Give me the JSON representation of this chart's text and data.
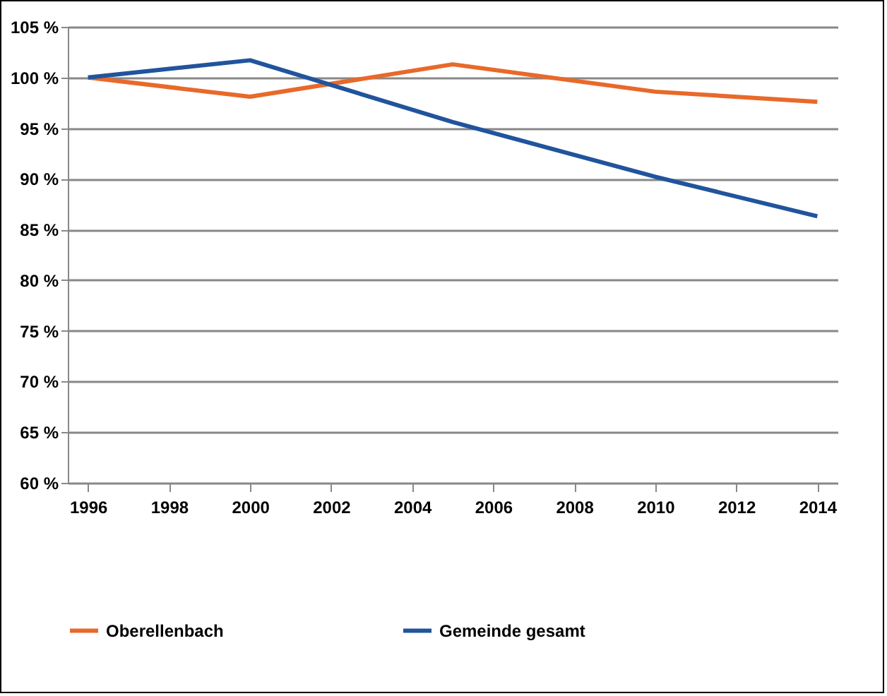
{
  "chart_data": {
    "type": "line",
    "x": [
      1996,
      2000,
      2005,
      2010,
      2014
    ],
    "series": [
      {
        "name": "Oberellenbach",
        "color": "#e8692a",
        "values": [
          100,
          98.1,
          101.3,
          98.6,
          97.6
        ]
      },
      {
        "name": "Gemeinde gesamt",
        "color": "#21549c",
        "values": [
          100,
          101.7,
          95.6,
          90.2,
          86.3
        ]
      }
    ],
    "xlim": [
      1995.5,
      2014.5
    ],
    "xticks": [
      1996,
      1998,
      2000,
      2002,
      2004,
      2006,
      2008,
      2010,
      2012,
      2014
    ],
    "ylim": [
      60,
      105
    ],
    "yticks": [
      {
        "value": 60,
        "label": "60 %"
      },
      {
        "value": 65,
        "label": "65 %"
      },
      {
        "value": 70,
        "label": "70 %"
      },
      {
        "value": 75,
        "label": "75 %"
      },
      {
        "value": 80,
        "label": "80 %"
      },
      {
        "value": 85,
        "label": "85 %"
      },
      {
        "value": 90,
        "label": "90 %"
      },
      {
        "value": 95,
        "label": "95 %"
      },
      {
        "value": 100,
        "label": "100 %"
      },
      {
        "value": 105,
        "label": "105 %"
      }
    ],
    "grid": "y",
    "legend": "bottom",
    "marker": "none",
    "line_style": "solid"
  }
}
